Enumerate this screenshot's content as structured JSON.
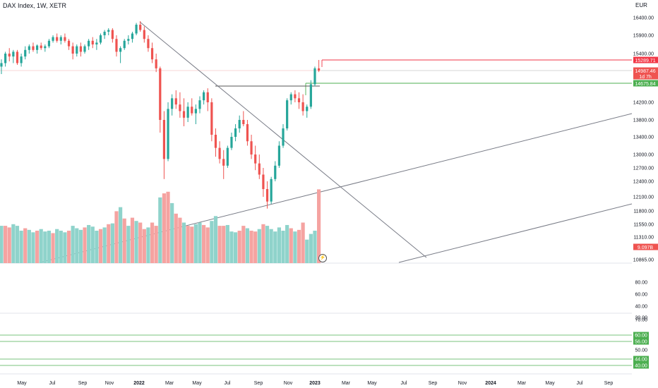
{
  "header": {
    "symbol": "DAX Index, 1W, XETR",
    "currency": "EUR"
  },
  "colors": {
    "up": "#26a69a",
    "down": "#ef5350",
    "vol_up": "#8fd3cb",
    "vol_down": "#f5a3a1",
    "trendline": "#787b86",
    "resistance": "#f23645",
    "support": "#4caf50",
    "grid_text": "#131722"
  },
  "chart_data": [
    {
      "type": "candlestick",
      "title": "DAX Index, 1W, XETR",
      "ylabel": "EUR",
      "y_ticks": [
        "16400.00",
        "15900.00",
        "15400.00",
        "14200.00",
        "13800.00",
        "13400.00",
        "13000.00",
        "12700.00",
        "12400.00",
        "12100.00",
        "11800.00",
        "11550.00",
        "11310.00",
        "10865.00"
      ],
      "x_ticks": [
        "May",
        "Jul",
        "Sep",
        "Nov",
        "2022",
        "Mar",
        "May",
        "Jul",
        "Sep",
        "Nov",
        "2023",
        "Mar",
        "May",
        "Jul",
        "Sep",
        "Nov",
        "2024",
        "Mar",
        "May",
        "Jul",
        "Sep"
      ],
      "price_labels": {
        "upper_level": "15289.71",
        "last_price": "14987.46",
        "countdown": "1d 7h",
        "lower_level": "14675.84",
        "volume_last": "9.097B"
      },
      "ohlc": [
        [
          15100,
          15300,
          14900,
          15200
        ],
        [
          15200,
          15450,
          15100,
          15400
        ],
        [
          15400,
          15550,
          15250,
          15350
        ],
        [
          15350,
          15500,
          15200,
          15450
        ],
        [
          15450,
          15500,
          15150,
          15200
        ],
        [
          15200,
          15400,
          15100,
          15350
        ],
        [
          15350,
          15600,
          15300,
          15500
        ],
        [
          15500,
          15650,
          15400,
          15600
        ],
        [
          15600,
          15700,
          15450,
          15500
        ],
        [
          15500,
          15650,
          15400,
          15620
        ],
        [
          15620,
          15700,
          15500,
          15550
        ],
        [
          15550,
          15650,
          15450,
          15600
        ],
        [
          15600,
          15800,
          15550,
          15750
        ],
        [
          15750,
          15900,
          15700,
          15850
        ],
        [
          15850,
          15950,
          15700,
          15750
        ],
        [
          15750,
          15900,
          15650,
          15850
        ],
        [
          15850,
          15950,
          15700,
          15750
        ],
        [
          15750,
          15800,
          15500,
          15600
        ],
        [
          15600,
          15700,
          15300,
          15400
        ],
        [
          15400,
          15650,
          15350,
          15600
        ],
        [
          15600,
          15700,
          15350,
          15450
        ],
        [
          15450,
          15650,
          15400,
          15600
        ],
        [
          15600,
          15800,
          15500,
          15750
        ],
        [
          15750,
          15850,
          15550,
          15650
        ],
        [
          15650,
          15800,
          15500,
          15700
        ],
        [
          15700,
          15950,
          15650,
          15900
        ],
        [
          15900,
          16050,
          15800,
          16000
        ],
        [
          16000,
          16100,
          15900,
          16050
        ],
        [
          16050,
          16100,
          15700,
          15800
        ],
        [
          15800,
          15900,
          15350,
          15450
        ],
        [
          15450,
          15600,
          15200,
          15550
        ],
        [
          15550,
          15800,
          15500,
          15750
        ],
        [
          15750,
          15900,
          15650,
          15800
        ],
        [
          15800,
          16000,
          15700,
          15950
        ],
        [
          15950,
          16250,
          15900,
          16200
        ],
        [
          16200,
          16300,
          16000,
          16050
        ],
        [
          16050,
          16150,
          15700,
          15800
        ],
        [
          15800,
          15900,
          15450,
          15550
        ],
        [
          15550,
          15700,
          15200,
          15300
        ],
        [
          15300,
          15400,
          14950,
          15050
        ],
        [
          15050,
          15100,
          13500,
          13800
        ],
        [
          13800,
          14000,
          12450,
          12900
        ],
        [
          12900,
          14200,
          12850,
          14050
        ],
        [
          14050,
          14400,
          13900,
          14300
        ],
        [
          14300,
          14500,
          14050,
          14150
        ],
        [
          14150,
          14450,
          13850,
          14000
        ],
        [
          14000,
          14300,
          13650,
          13850
        ],
        [
          13850,
          14200,
          13750,
          14100
        ],
        [
          14100,
          14300,
          13900,
          13950
        ],
        [
          13950,
          14150,
          13700,
          14050
        ],
        [
          14050,
          14350,
          13950,
          14250
        ],
        [
          14250,
          14500,
          14150,
          14450
        ],
        [
          14450,
          14550,
          14000,
          14200
        ],
        [
          14200,
          14300,
          13300,
          13450
        ],
        [
          13450,
          13600,
          12950,
          13150
        ],
        [
          13150,
          13300,
          12800,
          12900
        ],
        [
          12900,
          13100,
          12450,
          12750
        ],
        [
          12750,
          13200,
          12700,
          13150
        ],
        [
          13150,
          13500,
          13100,
          13400
        ],
        [
          13400,
          13700,
          13300,
          13600
        ],
        [
          13600,
          13900,
          13500,
          13800
        ],
        [
          13800,
          14000,
          13650,
          13700
        ],
        [
          13700,
          13800,
          13200,
          13300
        ],
        [
          13300,
          13450,
          12900,
          13000
        ],
        [
          13000,
          13200,
          12650,
          12800
        ],
        [
          12800,
          13000,
          12450,
          12550
        ],
        [
          12550,
          12700,
          12100,
          12250
        ],
        [
          12250,
          12400,
          11850,
          12000
        ],
        [
          12000,
          12500,
          11950,
          12450
        ],
        [
          12450,
          12850,
          12400,
          12750
        ],
        [
          12750,
          13300,
          12700,
          13200
        ],
        [
          13200,
          13700,
          13150,
          13600
        ],
        [
          13600,
          14300,
          13550,
          14250
        ],
        [
          14250,
          14450,
          14150,
          14400
        ],
        [
          14400,
          14500,
          14200,
          14300
        ],
        [
          14300,
          14450,
          14050,
          14200
        ],
        [
          14200,
          14400,
          13900,
          14000
        ],
        [
          14000,
          14150,
          13850,
          14100
        ],
        [
          14100,
          14750,
          14050,
          14650
        ],
        [
          14650,
          15100,
          14600,
          15050
        ],
        [
          15050,
          15290,
          14950,
          14987
        ]
      ],
      "volume": [
        [
          4.6,
          1
        ],
        [
          4.6,
          0
        ],
        [
          4.4,
          0
        ],
        [
          4.8,
          1
        ],
        [
          4.6,
          1
        ],
        [
          4.0,
          1
        ],
        [
          4.3,
          0
        ],
        [
          4.1,
          1
        ],
        [
          3.8,
          1
        ],
        [
          4.0,
          0
        ],
        [
          4.2,
          1
        ],
        [
          3.9,
          1
        ],
        [
          4.0,
          1
        ],
        [
          3.7,
          0
        ],
        [
          4.2,
          1
        ],
        [
          4.0,
          1
        ],
        [
          3.8,
          1
        ],
        [
          4.0,
          0
        ],
        [
          4.6,
          1
        ],
        [
          4.3,
          1
        ],
        [
          4.1,
          1
        ],
        [
          4.4,
          0
        ],
        [
          4.7,
          1
        ],
        [
          4.5,
          1
        ],
        [
          4.0,
          1
        ],
        [
          4.2,
          0
        ],
        [
          4.4,
          1
        ],
        [
          4.8,
          0
        ],
        [
          4.9,
          1
        ],
        [
          6.4,
          0
        ],
        [
          6.9,
          1
        ],
        [
          5.5,
          0
        ],
        [
          4.6,
          1
        ],
        [
          5.6,
          0
        ],
        [
          5.2,
          1
        ],
        [
          5.0,
          0
        ],
        [
          4.2,
          0
        ],
        [
          4.4,
          1
        ],
        [
          5.0,
          0
        ],
        [
          4.6,
          0
        ],
        [
          8.1,
          1
        ],
        [
          8.6,
          0
        ],
        [
          8.8,
          0
        ],
        [
          7.4,
          1
        ],
        [
          6.1,
          0
        ],
        [
          5.6,
          0
        ],
        [
          5.0,
          1
        ],
        [
          4.6,
          0
        ],
        [
          4.5,
          0
        ],
        [
          4.8,
          1
        ],
        [
          5.0,
          1
        ],
        [
          4.7,
          0
        ],
        [
          4.4,
          0
        ],
        [
          5.2,
          1
        ],
        [
          5.8,
          1
        ],
        [
          4.6,
          0
        ],
        [
          4.6,
          0
        ],
        [
          4.7,
          1
        ],
        [
          3.9,
          1
        ],
        [
          3.8,
          1
        ],
        [
          4.0,
          0
        ],
        [
          4.6,
          0
        ],
        [
          4.3,
          1
        ],
        [
          4.0,
          0
        ],
        [
          3.9,
          0
        ],
        [
          4.2,
          1
        ],
        [
          4.8,
          0
        ],
        [
          4.6,
          1
        ],
        [
          4.2,
          1
        ],
        [
          3.9,
          1
        ],
        [
          4.4,
          1
        ],
        [
          4.0,
          1
        ],
        [
          4.7,
          1
        ],
        [
          4.3,
          0
        ],
        [
          3.9,
          1
        ],
        [
          4.1,
          0
        ],
        [
          5.0,
          0
        ],
        [
          2.9,
          1
        ],
        [
          3.6,
          1
        ],
        [
          4.0,
          1
        ],
        [
          9.097,
          0
        ]
      ]
    }
  ],
  "indicators": {
    "panel1_ticks": [
      "80.00",
      "60.00",
      "40.00",
      "20.00"
    ],
    "panel2_ticks": [
      "70.00",
      "60.00",
      "56.00",
      "50.00",
      "44.00",
      "40.00"
    ],
    "panel2_levels": [
      "60.00",
      "56.00",
      "44.00",
      "40.00"
    ]
  }
}
